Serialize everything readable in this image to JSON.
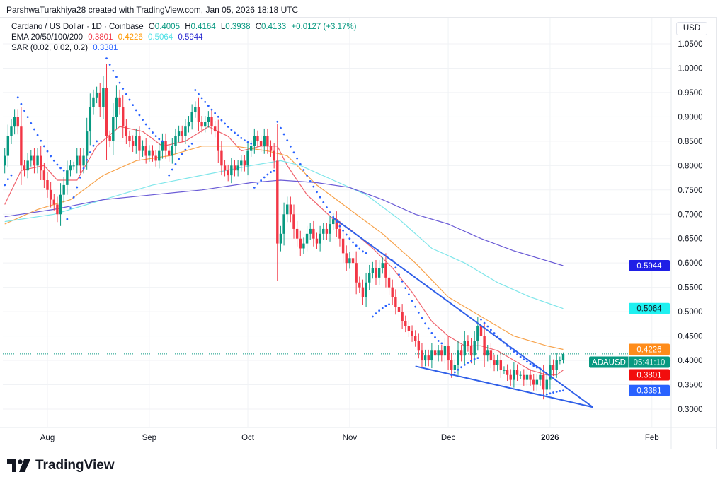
{
  "header": "ParshwaTurakhiya28 created with TradingView.com, Jan 05, 2026 18:18 UTC",
  "legend": {
    "symbol": "Cardano / US Dollar · 1D · Coinbase",
    "o_label": "O",
    "o": "0.4005",
    "h_label": "H",
    "h": "0.4164",
    "l_label": "L",
    "l": "0.3938",
    "c_label": "C",
    "c": "0.4133",
    "change": "+0.0127 (+3.17%)",
    "ema_label": "EMA 20/50/100/200",
    "ema20": "0.3801",
    "ema50": "0.4226",
    "ema100": "0.5064",
    "ema200": "0.5944",
    "sar_label": "SAR (0.02, 0.02, 0.2)",
    "sar": "0.3381"
  },
  "currency": "USD",
  "logo_text": "TradingView",
  "colors": {
    "up": "#089981",
    "down": "#f23645",
    "ema20": "#f0636d",
    "ema50": "#f7a24a",
    "ema100": "#7fe6ea",
    "ema200": "#6a5bd6",
    "sar": "#2962ff",
    "trendline": "#2f5fe8"
  },
  "chart_data": {
    "type": "candlestick",
    "title": "Cardano / US Dollar · 1D · Coinbase",
    "x_start": "Jul 19, 2025",
    "x_ticks": [
      {
        "label": "Aug",
        "i": 13
      },
      {
        "label": "Sep",
        "i": 44
      },
      {
        "label": "Oct",
        "i": 74
      },
      {
        "label": "Nov",
        "i": 105
      },
      {
        "label": "Dec",
        "i": 135
      },
      {
        "label": "2026",
        "i": 166,
        "bold": true
      },
      {
        "label": "Feb",
        "i": 197
      }
    ],
    "y_ticks": [
      "1.0500",
      "1.0000",
      "0.9500",
      "0.9000",
      "0.8500",
      "0.8000",
      "0.7500",
      "0.7000",
      "0.6500",
      "0.6000",
      "0.5500",
      "0.5000",
      "0.4500",
      "0.4000",
      "0.3500",
      "0.3000"
    ],
    "ylim": [
      0.28,
      1.08
    ],
    "first_open": 0.8,
    "last_candle": {
      "o": 0.4005,
      "h": 0.4164,
      "l": 0.3938,
      "c": 0.4133
    },
    "closes": [
      0.82,
      0.86,
      0.88,
      0.9,
      0.88,
      0.8,
      0.79,
      0.81,
      0.82,
      0.8,
      0.82,
      0.79,
      0.77,
      0.75,
      0.73,
      0.72,
      0.7,
      0.74,
      0.76,
      0.79,
      0.8,
      0.8,
      0.82,
      0.8,
      0.82,
      0.87,
      0.92,
      0.94,
      0.95,
      0.92,
      0.96,
      0.86,
      0.85,
      0.9,
      0.94,
      0.92,
      0.88,
      0.86,
      0.85,
      0.84,
      0.86,
      0.83,
      0.84,
      0.82,
      0.83,
      0.82,
      0.81,
      0.83,
      0.85,
      0.83,
      0.82,
      0.84,
      0.86,
      0.87,
      0.86,
      0.88,
      0.89,
      0.91,
      0.92,
      0.89,
      0.88,
      0.89,
      0.9,
      0.88,
      0.87,
      0.83,
      0.8,
      0.79,
      0.78,
      0.8,
      0.79,
      0.8,
      0.81,
      0.8,
      0.83,
      0.84,
      0.86,
      0.85,
      0.84,
      0.86,
      0.84,
      0.83,
      0.81,
      0.64,
      0.66,
      0.7,
      0.72,
      0.7,
      0.67,
      0.65,
      0.63,
      0.64,
      0.66,
      0.67,
      0.65,
      0.64,
      0.66,
      0.67,
      0.66,
      0.68,
      0.69,
      0.67,
      0.65,
      0.62,
      0.6,
      0.61,
      0.6,
      0.56,
      0.55,
      0.53,
      0.56,
      0.58,
      0.59,
      0.57,
      0.59,
      0.6,
      0.57,
      0.55,
      0.53,
      0.51,
      0.5,
      0.48,
      0.47,
      0.46,
      0.45,
      0.44,
      0.42,
      0.4,
      0.41,
      0.4,
      0.42,
      0.41,
      0.42,
      0.41,
      0.43,
      0.4,
      0.38,
      0.39,
      0.42,
      0.41,
      0.44,
      0.43,
      0.41,
      0.44,
      0.47,
      0.45,
      0.41,
      0.42,
      0.4,
      0.39,
      0.4,
      0.38,
      0.38,
      0.37,
      0.36,
      0.38,
      0.37,
      0.37,
      0.36,
      0.37,
      0.36,
      0.35,
      0.36,
      0.37,
      0.34,
      0.36,
      0.39,
      0.38,
      0.4,
      0.4,
      0.4133
    ],
    "ema": [
      {
        "name": "EMA 20",
        "key": "ema20",
        "value": 0.3801,
        "points": [
          [
            0,
            0.72
          ],
          [
            5,
            0.79
          ],
          [
            12,
            0.8
          ],
          [
            16,
            0.77
          ],
          [
            22,
            0.77
          ],
          [
            28,
            0.84
          ],
          [
            35,
            0.88
          ],
          [
            42,
            0.87
          ],
          [
            48,
            0.84
          ],
          [
            55,
            0.85
          ],
          [
            62,
            0.88
          ],
          [
            68,
            0.86
          ],
          [
            72,
            0.83
          ],
          [
            78,
            0.84
          ],
          [
            83,
            0.84
          ],
          [
            86,
            0.8
          ],
          [
            92,
            0.74
          ],
          [
            100,
            0.69
          ],
          [
            105,
            0.67
          ],
          [
            112,
            0.63
          ],
          [
            118,
            0.59
          ],
          [
            124,
            0.54
          ],
          [
            130,
            0.48
          ],
          [
            135,
            0.45
          ],
          [
            140,
            0.43
          ],
          [
            145,
            0.43
          ],
          [
            150,
            0.42
          ],
          [
            155,
            0.4
          ],
          [
            160,
            0.38
          ],
          [
            165,
            0.37
          ],
          [
            168,
            0.37
          ],
          [
            170,
            0.3801
          ]
        ]
      },
      {
        "name": "EMA 50",
        "key": "ema50",
        "value": 0.4226,
        "points": [
          [
            0,
            0.68
          ],
          [
            10,
            0.71
          ],
          [
            20,
            0.73
          ],
          [
            30,
            0.78
          ],
          [
            40,
            0.81
          ],
          [
            50,
            0.82
          ],
          [
            60,
            0.84
          ],
          [
            70,
            0.84
          ],
          [
            80,
            0.83
          ],
          [
            86,
            0.82
          ],
          [
            95,
            0.76
          ],
          [
            105,
            0.71
          ],
          [
            115,
            0.66
          ],
          [
            125,
            0.6
          ],
          [
            135,
            0.53
          ],
          [
            145,
            0.49
          ],
          [
            155,
            0.45
          ],
          [
            165,
            0.43
          ],
          [
            170,
            0.4226
          ]
        ]
      },
      {
        "name": "EMA 100",
        "key": "ema100",
        "value": 0.5064,
        "points": [
          [
            0,
            0.685
          ],
          [
            15,
            0.7
          ],
          [
            25,
            0.72
          ],
          [
            35,
            0.74
          ],
          [
            45,
            0.76
          ],
          [
            60,
            0.78
          ],
          [
            75,
            0.8
          ],
          [
            84,
            0.81
          ],
          [
            90,
            0.8
          ],
          [
            100,
            0.77
          ],
          [
            110,
            0.74
          ],
          [
            120,
            0.69
          ],
          [
            130,
            0.63
          ],
          [
            140,
            0.6
          ],
          [
            150,
            0.56
          ],
          [
            160,
            0.53
          ],
          [
            170,
            0.5064
          ]
        ]
      },
      {
        "name": "EMA 200",
        "key": "ema200",
        "value": 0.5944,
        "points": [
          [
            0,
            0.695
          ],
          [
            15,
            0.71
          ],
          [
            30,
            0.73
          ],
          [
            45,
            0.74
          ],
          [
            60,
            0.75
          ],
          [
            75,
            0.765
          ],
          [
            84,
            0.77
          ],
          [
            95,
            0.765
          ],
          [
            105,
            0.755
          ],
          [
            115,
            0.73
          ],
          [
            125,
            0.7
          ],
          [
            135,
            0.68
          ],
          [
            145,
            0.65
          ],
          [
            155,
            0.625
          ],
          [
            170,
            0.5944
          ]
        ]
      }
    ],
    "sar_segments": [
      [
        0,
        0.76,
        2,
        0.78
      ],
      [
        4,
        0.94,
        18,
        0.79
      ],
      [
        19,
        0.69,
        28,
        0.85
      ],
      [
        31,
        1.02,
        48,
        0.85
      ],
      [
        50,
        0.78,
        57,
        0.845
      ],
      [
        58,
        0.955,
        75,
        0.845
      ],
      [
        76,
        0.755,
        82,
        0.79
      ],
      [
        83,
        0.89,
        110,
        0.62
      ],
      [
        112,
        0.49,
        117,
        0.515
      ],
      [
        118,
        0.605,
        133,
        0.435
      ],
      [
        136,
        0.37,
        144,
        0.405
      ],
      [
        145,
        0.484,
        163,
        0.383
      ],
      [
        164,
        0.328,
        170,
        0.3381
      ]
    ],
    "trendlines": [
      {
        "name": "upper",
        "from": [
          100,
          0.693
        ],
        "to": [
          179,
          0.304
        ]
      },
      {
        "name": "lower",
        "from": [
          125,
          0.388
        ],
        "to": [
          179,
          0.304
        ]
      }
    ],
    "price_badges": [
      {
        "label": "0.5944",
        "value": 0.5944,
        "bg": "#1f1fe6",
        "fg": "#ffffff"
      },
      {
        "label": "0.5064",
        "value": 0.5064,
        "bg": "#1ff0f0",
        "fg": "#131722"
      },
      {
        "label": "0.4226",
        "value": 0.4226,
        "bg": "#ff8c1a",
        "fg": "#ffffff"
      },
      {
        "label": "0.3801",
        "value": 0.3801,
        "bg": "#f20d0d",
        "fg": "#ffffff"
      },
      {
        "label": "0.3381",
        "value": 0.3381,
        "bg": "#2962ff",
        "fg": "#ffffff"
      }
    ],
    "current": {
      "symbol": "ADAUSD",
      "countdown": "05:41:10",
      "value": 0.4133,
      "bg": "#089981"
    }
  }
}
